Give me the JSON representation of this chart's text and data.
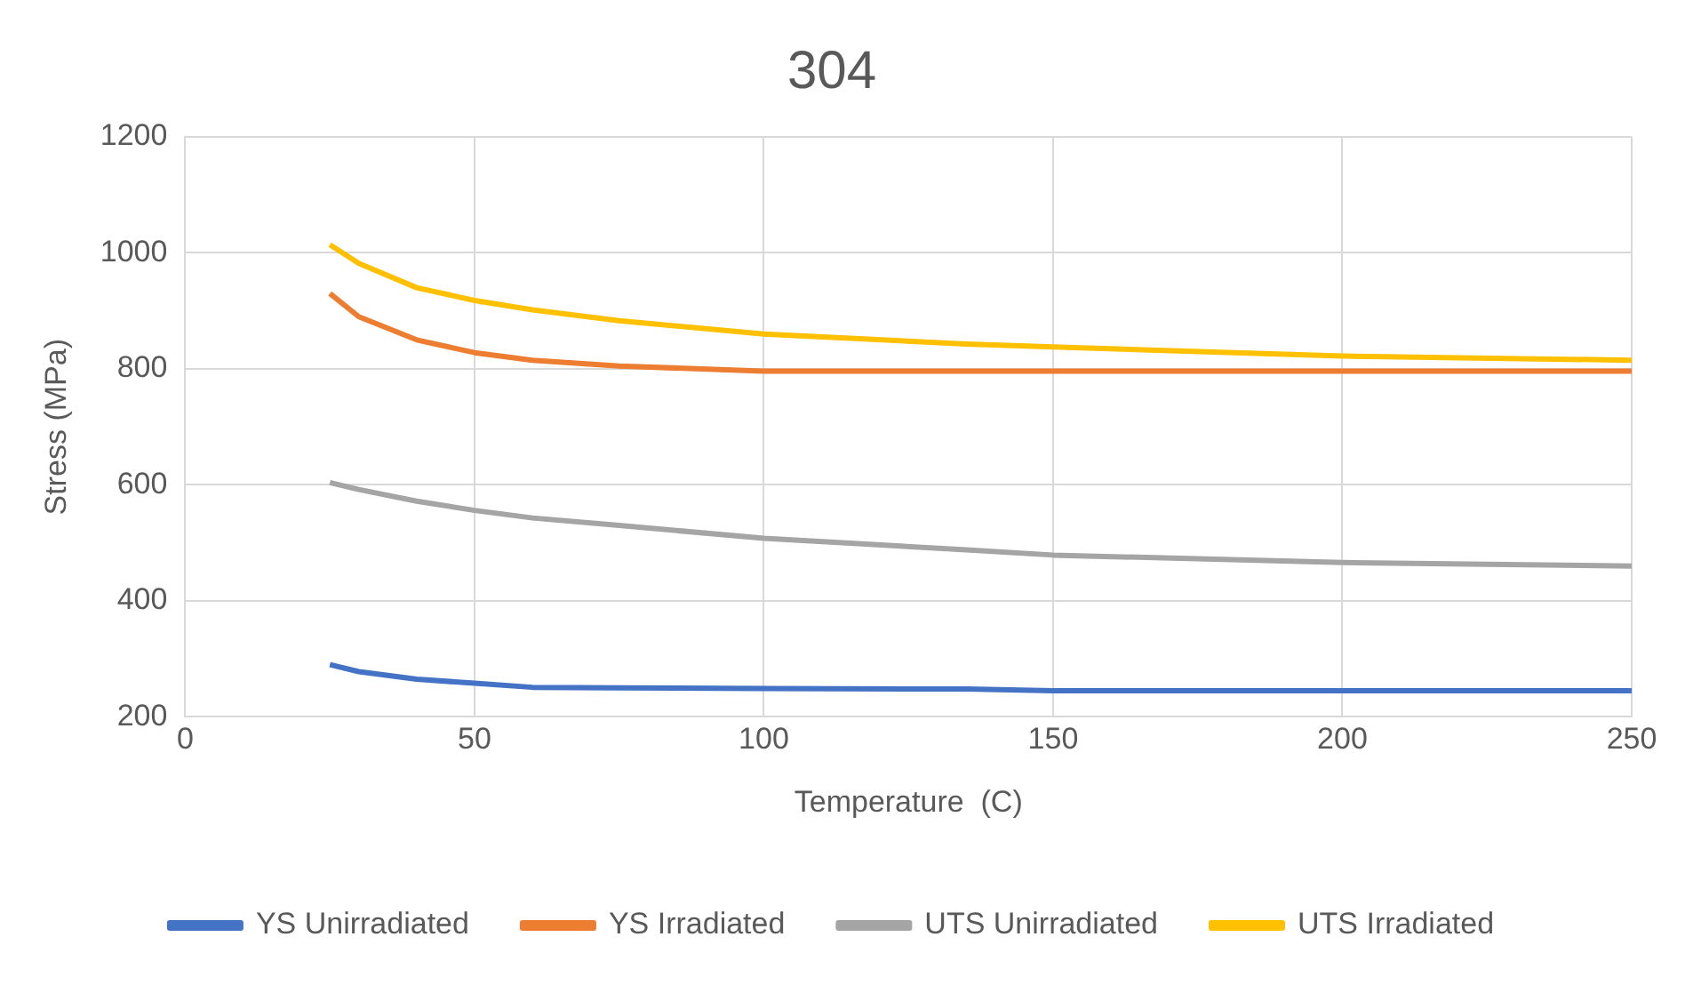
{
  "chart_data": {
    "type": "line",
    "title": "304",
    "xlabel": "Temperature  (C)",
    "ylabel": "Stress (MPa)",
    "xlim": [
      0,
      250
    ],
    "xticks": [
      0,
      50,
      100,
      150,
      200,
      250
    ],
    "ylim": [
      200,
      1200
    ],
    "yticks": [
      200,
      400,
      600,
      800,
      1000,
      1200
    ],
    "grid": true,
    "legend": "bottom",
    "marker": "none",
    "line_style": "solid",
    "x": [
      25,
      30,
      40,
      50,
      60,
      75,
      100,
      135,
      150,
      200,
      250
    ],
    "series": [
      {
        "name": "YS Unirradiated",
        "color": "#4472c4",
        "values": [
          290,
          278,
          265,
          258,
          251,
          250,
          249,
          248,
          245,
          245,
          245
        ]
      },
      {
        "name": "YS Irradiated",
        "color": "#ed7d31",
        "values": [
          930,
          890,
          850,
          828,
          815,
          805,
          796,
          796,
          796,
          796,
          796
        ]
      },
      {
        "name": "UTS Unirradiated",
        "color": "#a5a5a5",
        "values": [
          604,
          592,
          572,
          556,
          543,
          530,
          508,
          488,
          479,
          466,
          460
        ]
      },
      {
        "name": "UTS Irradiated",
        "color": "#ffc000",
        "values": [
          1014,
          982,
          940,
          918,
          902,
          883,
          860,
          843,
          838,
          822,
          815
        ]
      }
    ]
  }
}
